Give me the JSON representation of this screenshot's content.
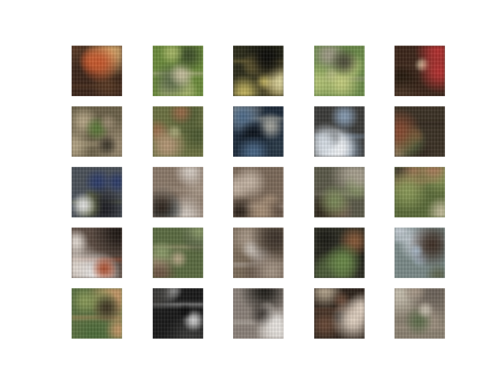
{
  "figure": {
    "rows": 5,
    "cols": 5,
    "tiles": [
      {
        "base": "#3a2418",
        "a": "#c8562a",
        "b": "#e0b070",
        "c": "#5a3a24",
        "d": "#1a1008"
      },
      {
        "base": "#6a8a3a",
        "a": "#a8b868",
        "b": "#3a4a28",
        "c": "#c8c0a0",
        "d": "#5a6a48"
      },
      {
        "base": "#2a2a18",
        "a": "#c8b860",
        "b": "#0a0a08",
        "c": "#8a7a40",
        "d": "#e0d8a0"
      },
      {
        "base": "#6a8a48",
        "a": "#b8c878",
        "b": "#4a4838",
        "c": "#a09a88",
        "d": "#c8d080"
      },
      {
        "base": "#3a2418",
        "a": "#b83030",
        "b": "#d8c0a0",
        "c": "#4a3424",
        "d": "#1a1208"
      },
      {
        "base": "#6a6048",
        "a": "#9a8a70",
        "b": "#5a7a38",
        "c": "#b8a888",
        "d": "#3a3428"
      },
      {
        "base": "#6a7040",
        "a": "#9a6a48",
        "b": "#a8a878",
        "c": "#4a5830",
        "d": "#b89878"
      },
      {
        "base": "#1a2838",
        "a": "#4a6888",
        "b": "#0a1018",
        "c": "#a8a8a0",
        "d": "#2a3a48"
      },
      {
        "base": "#3a3a38",
        "a": "#d8e0e8",
        "b": "#1a1a18",
        "c": "#8aa0b8",
        "d": "#ffffff"
      },
      {
        "base": "#3a3024",
        "a": "#8a4a30",
        "b": "#5a6a40",
        "c": "#2a2018",
        "d": "#a08868"
      },
      {
        "base": "#4a5058",
        "a": "#2a3a6a",
        "b": "#e8e8e8",
        "c": "#6a7048",
        "d": "#1a1a20"
      },
      {
        "base": "#8a7868",
        "a": "#d8d0c8",
        "b": "#2a2018",
        "c": "#a89888",
        "d": "#6a8a98"
      },
      {
        "base": "#7a6858",
        "a": "#a89078",
        "b": "#2a2018",
        "c": "#c8b8a8",
        "d": "#4a3a30"
      },
      {
        "base": "#5a5848",
        "a": "#7a8a58",
        "b": "#2a2418",
        "c": "#a8a090",
        "d": "#8a6a58"
      },
      {
        "base": "#5a6a38",
        "a": "#8a9a58",
        "b": "#3a3828",
        "c": "#a87858",
        "d": "#c8c0a0"
      },
      {
        "base": "#5a4a40",
        "a": "#e8e0d8",
        "b": "#1a1410",
        "c": "#a84a2a",
        "d": "#ffffff"
      },
      {
        "base": "#5a6a40",
        "a": "#8a9a68",
        "b": "#2a3028",
        "c": "#b8a888",
        "d": "#6a5040"
      },
      {
        "base": "#7a6a58",
        "a": "#a89888",
        "b": "#3a3028",
        "c": "#c8c0b8",
        "d": "#5a4a40"
      },
      {
        "base": "#2a2a20",
        "a": "#6a8a48",
        "b": "#8a5a38",
        "c": "#1a1a14",
        "d": "#4a5838"
      },
      {
        "base": "#7a8a88",
        "a": "#a8b8c8",
        "b": "#3a2a20",
        "c": "#c8d0d8",
        "d": "#5a6048"
      },
      {
        "base": "#5a7040",
        "a": "#8a9a58",
        "b": "#3a3020",
        "c": "#c89868",
        "d": "#4a6a38"
      },
      {
        "base": "#181818",
        "a": "#3a3a38",
        "b": "#0a0a0a",
        "c": "#d8d8d8",
        "d": "#5a5048"
      },
      {
        "base": "#8a8078",
        "a": "#e8e4e0",
        "b": "#3a3430",
        "c": "#c8c0b8",
        "d": "#1a1814"
      },
      {
        "base": "#2a2018",
        "a": "#e8d8c8",
        "b": "#0a0806",
        "c": "#6a4a38",
        "d": "#b8a890"
      },
      {
        "base": "#8a8070",
        "a": "#c8c0b0",
        "b": "#5a6a48",
        "c": "#a89888",
        "d": "#6a6058"
      }
    ]
  }
}
